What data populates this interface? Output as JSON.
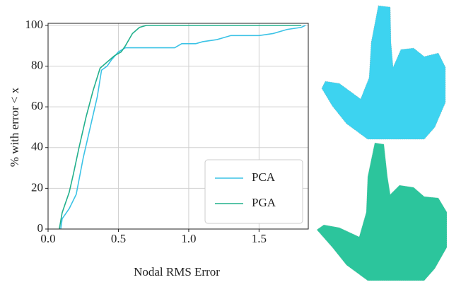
{
  "chart_data": {
    "type": "line",
    "xlabel": "Nodal RMS Error",
    "ylabel": "% with error < x",
    "xlim": [
      0,
      1.85
    ],
    "ylim": [
      0,
      101
    ],
    "xticks": [
      {
        "value": 0,
        "label": "0.0"
      },
      {
        "value": 0.5,
        "label": "0.5"
      },
      {
        "value": 1,
        "label": "1.0"
      },
      {
        "value": 1.5,
        "label": "1.5"
      }
    ],
    "yticks": [
      0,
      20,
      40,
      60,
      80,
      100
    ],
    "grid": true,
    "legend": "lower right",
    "series": [
      {
        "name": "PCA",
        "color": "#3cc3e6",
        "x": [
          0.09,
          0.1,
          0.15,
          0.2,
          0.25,
          0.3,
          0.35,
          0.38,
          0.42,
          0.45,
          0.5,
          0.55,
          0.6,
          0.8,
          0.9,
          0.95,
          1.05,
          1.1,
          1.2,
          1.3,
          1.5,
          1.6,
          1.7,
          1.8,
          1.83
        ],
        "values": [
          0,
          5,
          10,
          17,
          35,
          50,
          65,
          78,
          80,
          83,
          87,
          89,
          89,
          89,
          89,
          91,
          91,
          92,
          93,
          95,
          95,
          96,
          98,
          99,
          100
        ]
      },
      {
        "name": "PGA",
        "color": "#22b08c",
        "x": [
          0.08,
          0.1,
          0.12,
          0.15,
          0.18,
          0.22,
          0.27,
          0.32,
          0.37,
          0.42,
          0.47,
          0.52,
          0.55,
          0.6,
          0.65,
          0.7,
          1.8
        ],
        "values": [
          0,
          8,
          12,
          18,
          27,
          40,
          55,
          68,
          79,
          82,
          85,
          87,
          90,
          96,
          99,
          100,
          100
        ]
      }
    ]
  }
}
